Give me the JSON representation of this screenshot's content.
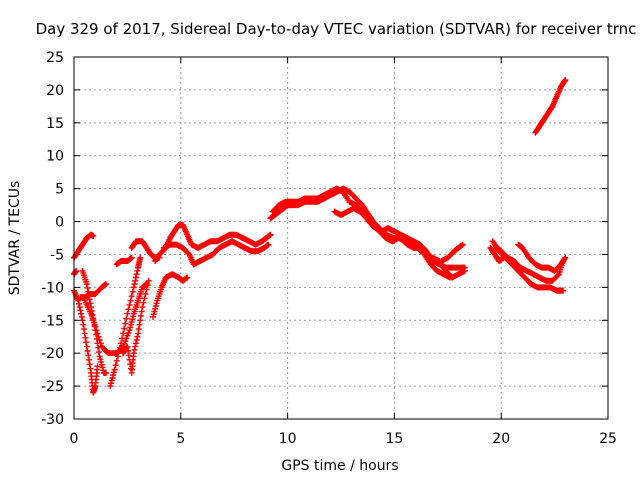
{
  "chart_data": {
    "type": "scatter",
    "title": "Day 329 of 2017, Sidereal Day-to-day VTEC variation (SDTVAR) for receiver trnc",
    "xlabel": "GPS time / hours",
    "ylabel": "SDTVAR / TECUs",
    "xlim": [
      0,
      25
    ],
    "ylim": [
      -30,
      25
    ],
    "xticks": [
      0,
      5,
      10,
      15,
      20,
      25
    ],
    "yticks": [
      -30,
      -25,
      -20,
      -15,
      -10,
      -5,
      0,
      5,
      10,
      15,
      20,
      25
    ],
    "grid": true,
    "marker": "+",
    "series": [
      {
        "name": "SDTVAR",
        "color": "#ff0000",
        "tracks": [
          [
            [
              0.0,
              -5.5
            ],
            [
              0.2,
              -4.5
            ],
            [
              0.4,
              -3.5
            ],
            [
              0.6,
              -2.5
            ],
            [
              0.8,
              -2.0
            ],
            [
              0.9,
              -2.2
            ]
          ],
          [
            [
              0.0,
              -10.5
            ],
            [
              0.2,
              -12.0
            ],
            [
              0.4,
              -15.0
            ],
            [
              0.6,
              -19.0
            ],
            [
              0.8,
              -23.0
            ],
            [
              0.9,
              -26.0
            ],
            [
              1.0,
              -25.0
            ],
            [
              1.1,
              -22.0
            ]
          ],
          [
            [
              0.0,
              -8.0
            ],
            [
              0.1,
              -7.5
            ]
          ],
          [
            [
              0.4,
              -7.5
            ],
            [
              0.6,
              -9.5
            ],
            [
              0.8,
              -13.0
            ],
            [
              1.0,
              -16.5
            ],
            [
              1.2,
              -20.5
            ],
            [
              1.4,
              -23.0
            ],
            [
              1.5,
              -23.0
            ]
          ],
          [
            [
              0.3,
              -11.5
            ],
            [
              0.5,
              -11.5
            ],
            [
              0.8,
              -11.0
            ],
            [
              1.0,
              -11.0
            ],
            [
              1.3,
              -10.0
            ],
            [
              1.5,
              -9.5
            ]
          ],
          [
            [
              0.5,
              -12.0
            ],
            [
              0.8,
              -14.0
            ],
            [
              1.0,
              -16.0
            ],
            [
              1.3,
              -19.0
            ],
            [
              1.6,
              -20.0
            ],
            [
              2.0,
              -20.0
            ],
            [
              2.3,
              -19.0
            ],
            [
              2.6,
              -16.5
            ],
            [
              2.8,
              -14.0
            ],
            [
              3.0,
              -12.0
            ],
            [
              3.2,
              -10.0
            ],
            [
              3.4,
              -9.5
            ]
          ],
          [
            [
              1.7,
              -25.0
            ],
            [
              1.9,
              -22.5
            ],
            [
              2.2,
              -18.5
            ],
            [
              2.5,
              -14.0
            ],
            [
              2.8,
              -10.0
            ],
            [
              3.0,
              -7.0
            ],
            [
              3.1,
              -5.5
            ]
          ],
          [
            [
              2.0,
              -6.5
            ],
            [
              2.2,
              -6.0
            ],
            [
              2.5,
              -6.0
            ],
            [
              2.7,
              -5.5
            ]
          ],
          [
            [
              2.3,
              -20.0
            ],
            [
              2.5,
              -19.0
            ],
            [
              2.7,
              -23.0
            ],
            [
              2.8,
              -20.0
            ],
            [
              3.0,
              -17.0
            ],
            [
              3.2,
              -13.0
            ],
            [
              3.5,
              -9.0
            ]
          ],
          [
            [
              2.7,
              -4.0
            ],
            [
              2.9,
              -3.0
            ],
            [
              3.2,
              -3.0
            ],
            [
              3.4,
              -4.0
            ],
            [
              3.6,
              -5.0
            ],
            [
              3.8,
              -5.5
            ],
            [
              4.0,
              -5.5
            ]
          ],
          [
            [
              3.7,
              -14.5
            ],
            [
              3.9,
              -12.0
            ],
            [
              4.1,
              -10.0
            ],
            [
              4.3,
              -8.5
            ],
            [
              4.6,
              -8.0
            ],
            [
              4.9,
              -8.5
            ],
            [
              5.1,
              -9.0
            ],
            [
              5.3,
              -8.5
            ]
          ],
          [
            [
              3.8,
              -6.0
            ],
            [
              4.0,
              -5.0
            ],
            [
              4.3,
              -4.0
            ],
            [
              4.5,
              -2.5
            ],
            [
              4.7,
              -1.5
            ],
            [
              4.9,
              -0.5
            ],
            [
              5.1,
              -0.5
            ],
            [
              5.3,
              -2.0
            ],
            [
              5.5,
              -3.5
            ],
            [
              5.8,
              -4.0
            ],
            [
              6.1,
              -3.5
            ],
            [
              6.4,
              -3.0
            ],
            [
              6.7,
              -3.0
            ],
            [
              7.0,
              -2.5
            ],
            [
              7.3,
              -2.0
            ],
            [
              7.6,
              -2.0
            ],
            [
              7.9,
              -2.5
            ],
            [
              8.2,
              -3.0
            ],
            [
              8.5,
              -3.5
            ],
            [
              8.8,
              -3.0
            ],
            [
              9.0,
              -2.5
            ],
            [
              9.2,
              -2.0
            ]
          ],
          [
            [
              4.2,
              -4.0
            ],
            [
              4.5,
              -3.5
            ],
            [
              4.8,
              -3.5
            ],
            [
              5.1,
              -4.0
            ],
            [
              5.4,
              -5.0
            ],
            [
              5.6,
              -6.5
            ],
            [
              5.9,
              -6.0
            ],
            [
              6.2,
              -5.5
            ],
            [
              6.5,
              -5.0
            ],
            [
              6.8,
              -4.0
            ],
            [
              7.1,
              -3.5
            ],
            [
              7.4,
              -3.0
            ],
            [
              7.7,
              -3.5
            ],
            [
              8.0,
              -4.0
            ],
            [
              8.3,
              -4.5
            ],
            [
              8.6,
              -4.5
            ],
            [
              8.9,
              -4.0
            ],
            [
              9.1,
              -3.5
            ]
          ],
          [
            [
              9.2,
              0.5
            ],
            [
              9.4,
              1.0
            ],
            [
              9.6,
              1.5
            ],
            [
              9.8,
              2.0
            ],
            [
              10.0,
              2.5
            ],
            [
              10.2,
              2.5
            ],
            [
              10.5,
              2.5
            ],
            [
              10.8,
              3.0
            ],
            [
              11.1,
              3.0
            ],
            [
              11.4,
              3.0
            ],
            [
              11.7,
              3.5
            ],
            [
              12.0,
              4.0
            ],
            [
              12.3,
              4.5
            ],
            [
              12.6,
              5.0
            ],
            [
              12.9,
              4.5
            ],
            [
              13.2,
              3.5
            ],
            [
              13.5,
              2.5
            ],
            [
              13.8,
              1.0
            ],
            [
              14.0,
              0.0
            ],
            [
              14.3,
              -1.0
            ],
            [
              14.6,
              -2.0
            ],
            [
              15.0,
              -2.5
            ],
            [
              15.3,
              -2.5
            ],
            [
              15.6,
              -3.5
            ],
            [
              15.9,
              -4.0
            ],
            [
              16.2,
              -4.0
            ],
            [
              16.5,
              -5.0
            ],
            [
              16.8,
              -5.5
            ],
            [
              17.1,
              -6.0
            ],
            [
              17.4,
              -7.5
            ],
            [
              17.7,
              -8.5
            ],
            [
              18.0,
              -8.0
            ],
            [
              18.3,
              -7.5
            ]
          ],
          [
            [
              9.3,
              1.5
            ],
            [
              9.6,
              2.5
            ],
            [
              9.9,
              3.0
            ],
            [
              10.2,
              3.0
            ],
            [
              10.5,
              3.0
            ],
            [
              10.8,
              3.5
            ],
            [
              11.1,
              3.5
            ],
            [
              11.4,
              3.5
            ],
            [
              11.7,
              4.0
            ],
            [
              12.0,
              4.5
            ],
            [
              12.3,
              5.0
            ],
            [
              12.6,
              4.5
            ],
            [
              12.9,
              3.0
            ],
            [
              13.2,
              2.5
            ],
            [
              13.5,
              1.5
            ],
            [
              13.8,
              0.0
            ],
            [
              14.1,
              -1.0
            ],
            [
              14.4,
              -1.5
            ],
            [
              14.7,
              -1.0
            ],
            [
              15.0,
              -1.5
            ],
            [
              15.3,
              -2.0
            ],
            [
              15.6,
              -2.5
            ],
            [
              15.9,
              -3.0
            ],
            [
              16.2,
              -3.5
            ],
            [
              16.5,
              -4.5
            ],
            [
              16.8,
              -6.0
            ],
            [
              17.1,
              -6.5
            ],
            [
              17.4,
              -7.0
            ],
            [
              17.7,
              -7.0
            ],
            [
              18.0,
              -7.0
            ],
            [
              18.3,
              -7.0
            ]
          ],
          [
            [
              12.2,
              1.5
            ],
            [
              12.5,
              1.0
            ],
            [
              12.8,
              1.5
            ],
            [
              13.1,
              2.0
            ],
            [
              13.4,
              1.5
            ],
            [
              13.7,
              0.5
            ],
            [
              14.0,
              -0.5
            ],
            [
              14.3,
              -1.5
            ],
            [
              14.6,
              -2.5
            ],
            [
              14.9,
              -3.0
            ],
            [
              15.2,
              -2.5
            ],
            [
              15.5,
              -3.0
            ],
            [
              15.8,
              -3.5
            ],
            [
              16.1,
              -4.0
            ],
            [
              16.4,
              -5.0
            ],
            [
              16.7,
              -6.5
            ],
            [
              17.0,
              -7.5
            ],
            [
              17.3,
              -8.0
            ],
            [
              17.6,
              -8.5
            ]
          ],
          [
            [
              17.2,
              -6.0
            ],
            [
              17.5,
              -5.5
            ],
            [
              17.8,
              -4.5
            ],
            [
              18.0,
              -4.0
            ],
            [
              18.2,
              -3.5
            ]
          ],
          [
            [
              19.8,
              -4.0
            ],
            [
              20.0,
              -4.5
            ],
            [
              20.3,
              -5.5
            ],
            [
              20.6,
              -6.0
            ],
            [
              20.9,
              -7.0
            ],
            [
              21.2,
              -7.5
            ],
            [
              21.5,
              -8.0
            ],
            [
              21.8,
              -8.5
            ],
            [
              22.1,
              -9.0
            ],
            [
              22.4,
              -9.0
            ],
            [
              22.7,
              -8.0
            ],
            [
              22.9,
              -6.0
            ]
          ],
          [
            [
              19.6,
              -3.0
            ],
            [
              19.9,
              -4.5
            ],
            [
              20.2,
              -5.5
            ],
            [
              20.5,
              -6.5
            ],
            [
              20.8,
              -7.5
            ],
            [
              21.1,
              -8.5
            ],
            [
              21.4,
              -9.5
            ],
            [
              21.7,
              -10.0
            ],
            [
              22.0,
              -10.0
            ],
            [
              22.3,
              -10.0
            ],
            [
              22.6,
              -10.5
            ],
            [
              22.9,
              -10.5
            ]
          ],
          [
            [
              20.8,
              -3.5
            ],
            [
              21.0,
              -4.0
            ],
            [
              21.3,
              -5.5
            ],
            [
              21.6,
              -6.5
            ],
            [
              21.9,
              -7.0
            ],
            [
              22.2,
              -7.0
            ],
            [
              22.5,
              -7.5
            ],
            [
              22.8,
              -6.5
            ],
            [
              23.0,
              -5.5
            ]
          ],
          [
            [
              19.5,
              -4.0
            ],
            [
              19.7,
              -5.0
            ],
            [
              19.9,
              -6.0
            ],
            [
              20.1,
              -5.5
            ]
          ],
          [
            [
              21.6,
              13.5
            ],
            [
              21.8,
              14.5
            ],
            [
              22.0,
              15.5
            ],
            [
              22.2,
              16.5
            ],
            [
              22.4,
              17.5
            ],
            [
              22.6,
              19.0
            ],
            [
              22.8,
              20.5
            ],
            [
              23.0,
              21.5
            ]
          ]
        ]
      }
    ]
  }
}
